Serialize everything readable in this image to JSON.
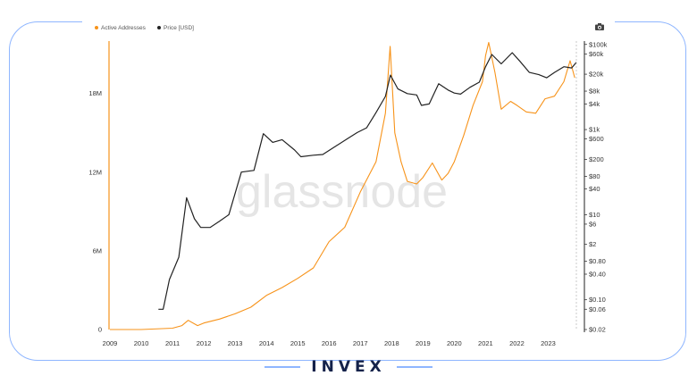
{
  "watermark": "glassnode",
  "brand": "INVEX",
  "chart_data": {
    "type": "line",
    "title": "",
    "x_ticks": [
      "2009",
      "2010",
      "2011",
      "2012",
      "2013",
      "2014",
      "2015",
      "2016",
      "2017",
      "2018",
      "2019",
      "2020",
      "2021",
      "2022",
      "2023"
    ],
    "x_range": [
      2009.0,
      2023.9
    ],
    "y_left": {
      "ticks": [
        "0",
        "6M",
        "12M",
        "18M"
      ],
      "range": [
        0,
        22000000
      ]
    },
    "y_right": {
      "scale": "log",
      "ticks": [
        "$100k",
        "$60k",
        "$20k",
        "$8k",
        "$4k",
        "$1k",
        "$600",
        "$200",
        "$80",
        "$40",
        "$10",
        "$6",
        "$2",
        "$0.80",
        "$0.40",
        "$0.10",
        "$0.06",
        "$0.02"
      ],
      "tick_values": [
        100000,
        60000,
        20000,
        8000,
        4000,
        1000,
        600,
        200,
        80,
        40,
        10,
        6,
        2,
        0.8,
        0.4,
        0.1,
        0.06,
        0.02
      ],
      "range": [
        0.02,
        120000
      ]
    },
    "legend_position": "top-left",
    "series": [
      {
        "name": "Active Addresses",
        "axis": "left",
        "color": "#f7931a",
        "x": [
          2009.0,
          2010.0,
          2011.0,
          2011.3,
          2011.5,
          2011.8,
          2012.0,
          2012.5,
          2013.0,
          2013.5,
          2014.0,
          2014.5,
          2015.0,
          2015.5,
          2016.0,
          2016.5,
          2017.0,
          2017.5,
          2017.8,
          2017.95,
          2018.1,
          2018.3,
          2018.5,
          2018.8,
          2019.0,
          2019.3,
          2019.6,
          2019.8,
          2020.0,
          2020.3,
          2020.6,
          2020.9,
          2021.0,
          2021.1,
          2021.3,
          2021.5,
          2021.8,
          2022.0,
          2022.3,
          2022.6,
          2022.9,
          2023.2,
          2023.5,
          2023.7,
          2023.85
        ],
        "y": [
          0,
          0,
          100000,
          300000,
          700000,
          300000,
          500000,
          800000,
          1200000,
          1700000,
          2600000,
          3200000,
          3900000,
          4700000,
          6700000,
          7800000,
          10500000,
          12800000,
          16500000,
          21600000,
          15000000,
          12800000,
          11300000,
          11100000,
          11600000,
          12700000,
          11400000,
          11900000,
          12800000,
          14800000,
          17100000,
          18900000,
          20900000,
          21900000,
          19600000,
          16800000,
          17400000,
          17100000,
          16600000,
          16500000,
          17600000,
          17800000,
          18900000,
          20500000,
          19200000
        ]
      },
      {
        "name": "Price [USD]",
        "axis": "right",
        "color": "#222222",
        "x": [
          2010.55,
          2010.7,
          2010.9,
          2011.2,
          2011.45,
          2011.7,
          2011.9,
          2012.2,
          2012.5,
          2012.8,
          2013.2,
          2013.6,
          2013.9,
          2014.2,
          2014.5,
          2014.9,
          2015.1,
          2015.5,
          2015.8,
          2016.2,
          2016.6,
          2016.9,
          2017.2,
          2017.5,
          2017.8,
          2017.96,
          2018.2,
          2018.5,
          2018.8,
          2018.95,
          2019.2,
          2019.5,
          2019.8,
          2020.0,
          2020.2,
          2020.5,
          2020.8,
          2021.0,
          2021.2,
          2021.5,
          2021.85,
          2022.1,
          2022.4,
          2022.7,
          2022.95,
          2023.2,
          2023.5,
          2023.75,
          2023.9
        ],
        "y": [
          0.06,
          0.06,
          0.3,
          1,
          25,
          8,
          5,
          5,
          7,
          10,
          100,
          110,
          800,
          500,
          580,
          330,
          230,
          250,
          260,
          400,
          620,
          850,
          1100,
          2500,
          6000,
          19000,
          9000,
          7000,
          6500,
          3700,
          4000,
          12000,
          8500,
          7200,
          6800,
          9800,
          13000,
          30000,
          58000,
          35000,
          64000,
          40000,
          22000,
          19500,
          16500,
          22000,
          30000,
          28000,
          38000
        ]
      }
    ]
  }
}
